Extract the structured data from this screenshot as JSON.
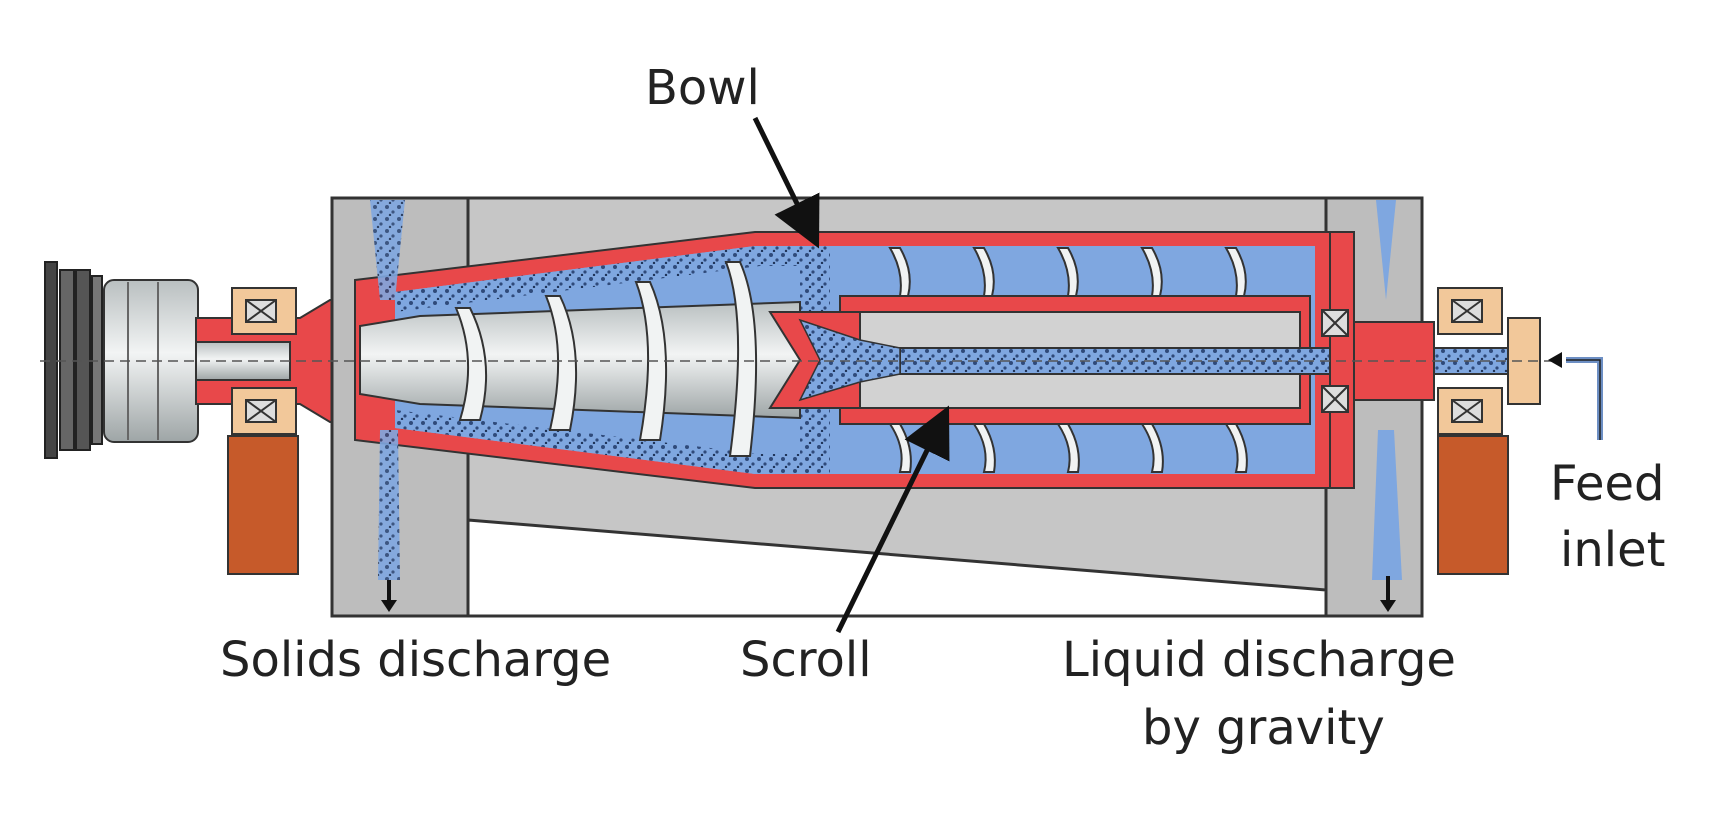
{
  "labels": {
    "bowl": "Bowl",
    "scroll": "Scroll",
    "solids_discharge": "Solids discharge",
    "liquid_discharge_line1": "Liquid discharge",
    "liquid_discharge_line2": "by gravity",
    "feed_line1": "Feed",
    "feed_line2": "inlet"
  },
  "colors": {
    "housing": "#c6c6c6",
    "housing_light": "#d6d6d6",
    "bowl_wall": "#e8484a",
    "liquid": "#7fa7e0",
    "solids": "#2f4a7a",
    "shaft_metal": "#d8dcdc",
    "bearing": "#f2c89a",
    "support": "#c65a2a",
    "outline": "#333333"
  }
}
